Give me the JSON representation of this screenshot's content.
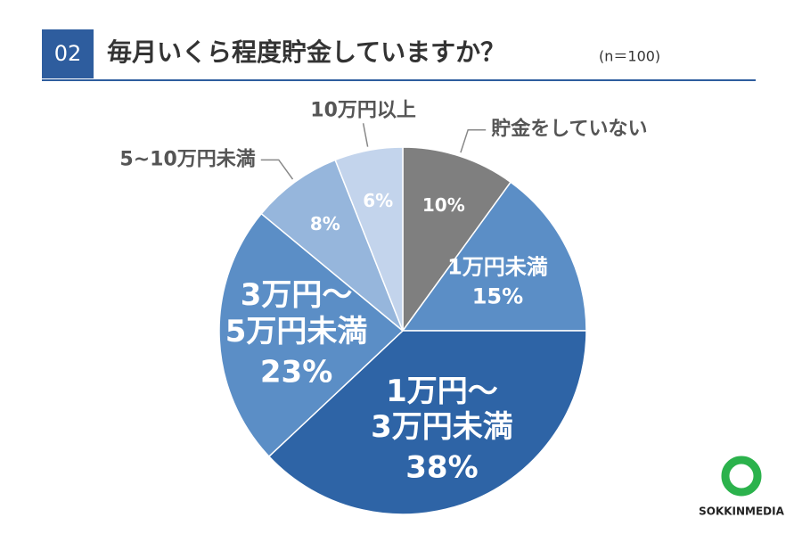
{
  "header": {
    "number": "02",
    "title": "毎月いくら程度貯金していますか？",
    "subtitle": "(n＝100)"
  },
  "chart_data": {
    "type": "pie",
    "categories": [
      "貯金をしていない",
      "1万円未満",
      "1万円～\n3万円未満",
      "3万円～\n5万円未満",
      "5~10万円未満",
      "10万円以上"
    ],
    "values": [
      10,
      15,
      38,
      23,
      8,
      6
    ],
    "value_labels": [
      "10%",
      "15%",
      "38%",
      "23%",
      "8%",
      "6%"
    ],
    "colors": [
      "#7f7f7f",
      "#5b8ec6",
      "#2e64a6",
      "#5b8ec6",
      "#96b6dc",
      "#c3d4ec"
    ]
  },
  "logo": "SOKKINMEDIA"
}
